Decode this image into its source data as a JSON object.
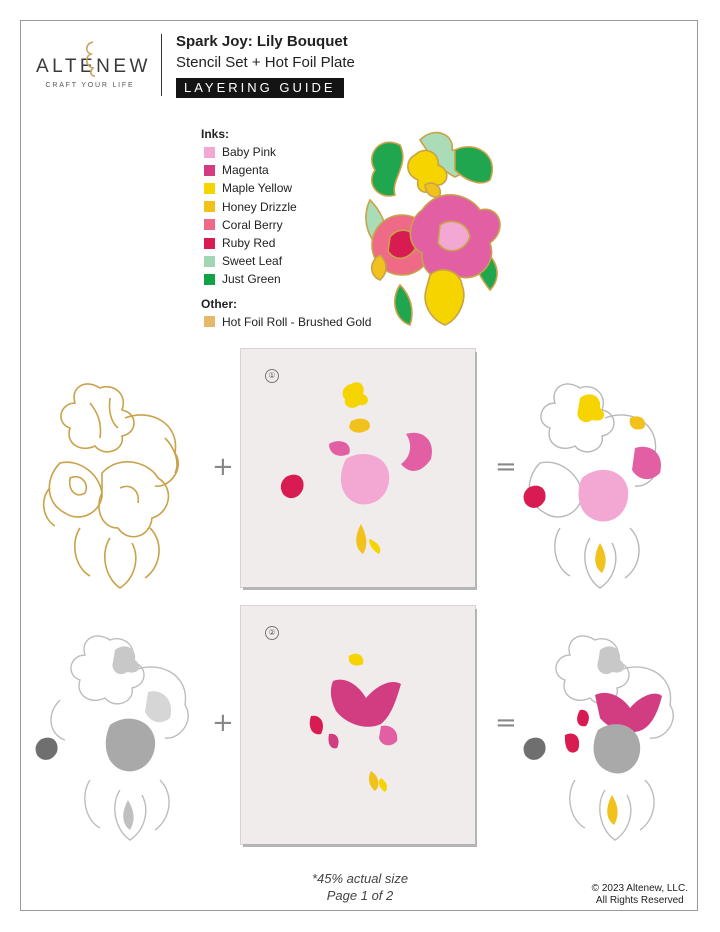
{
  "brand": {
    "name": "ALTENEW",
    "tagline": "CRAFT YOUR LIFE"
  },
  "header": {
    "title": "Spark Joy: Lily Bouquet",
    "subtitle": "Stencil Set + Hot Foil Plate",
    "badge": "LAYERING GUIDE"
  },
  "inks": {
    "heading": "Inks:",
    "items": [
      {
        "name": "Baby Pink",
        "color": "#f2a8d2"
      },
      {
        "name": "Magenta",
        "color": "#d23d82"
      },
      {
        "name": "Maple Yellow",
        "color": "#f5d400"
      },
      {
        "name": "Honey Drizzle",
        "color": "#f1c21c"
      },
      {
        "name": "Coral Berry",
        "color": "#ee6a87"
      },
      {
        "name": "Ruby Red",
        "color": "#d81b50"
      },
      {
        "name": "Sweet Leaf",
        "color": "#a2d6b2"
      },
      {
        "name": "Just Green",
        "color": "#12a245"
      }
    ]
  },
  "other": {
    "heading": "Other:",
    "items": [
      {
        "name": "Hot Foil Roll - Brushed Gold",
        "color": "#e5b86a"
      }
    ]
  },
  "steps": [
    {
      "number": "①",
      "operator_plus": "+",
      "operator_equals": "="
    },
    {
      "number": "②",
      "operator_plus": "+",
      "operator_equals": "="
    }
  ],
  "footer": {
    "scale_note": "*45% actual size",
    "page": "Page 1 of 2",
    "copyright_line1": "© 2023 Altenew, LLC.",
    "copyright_line2": "All Rights Reserved"
  }
}
